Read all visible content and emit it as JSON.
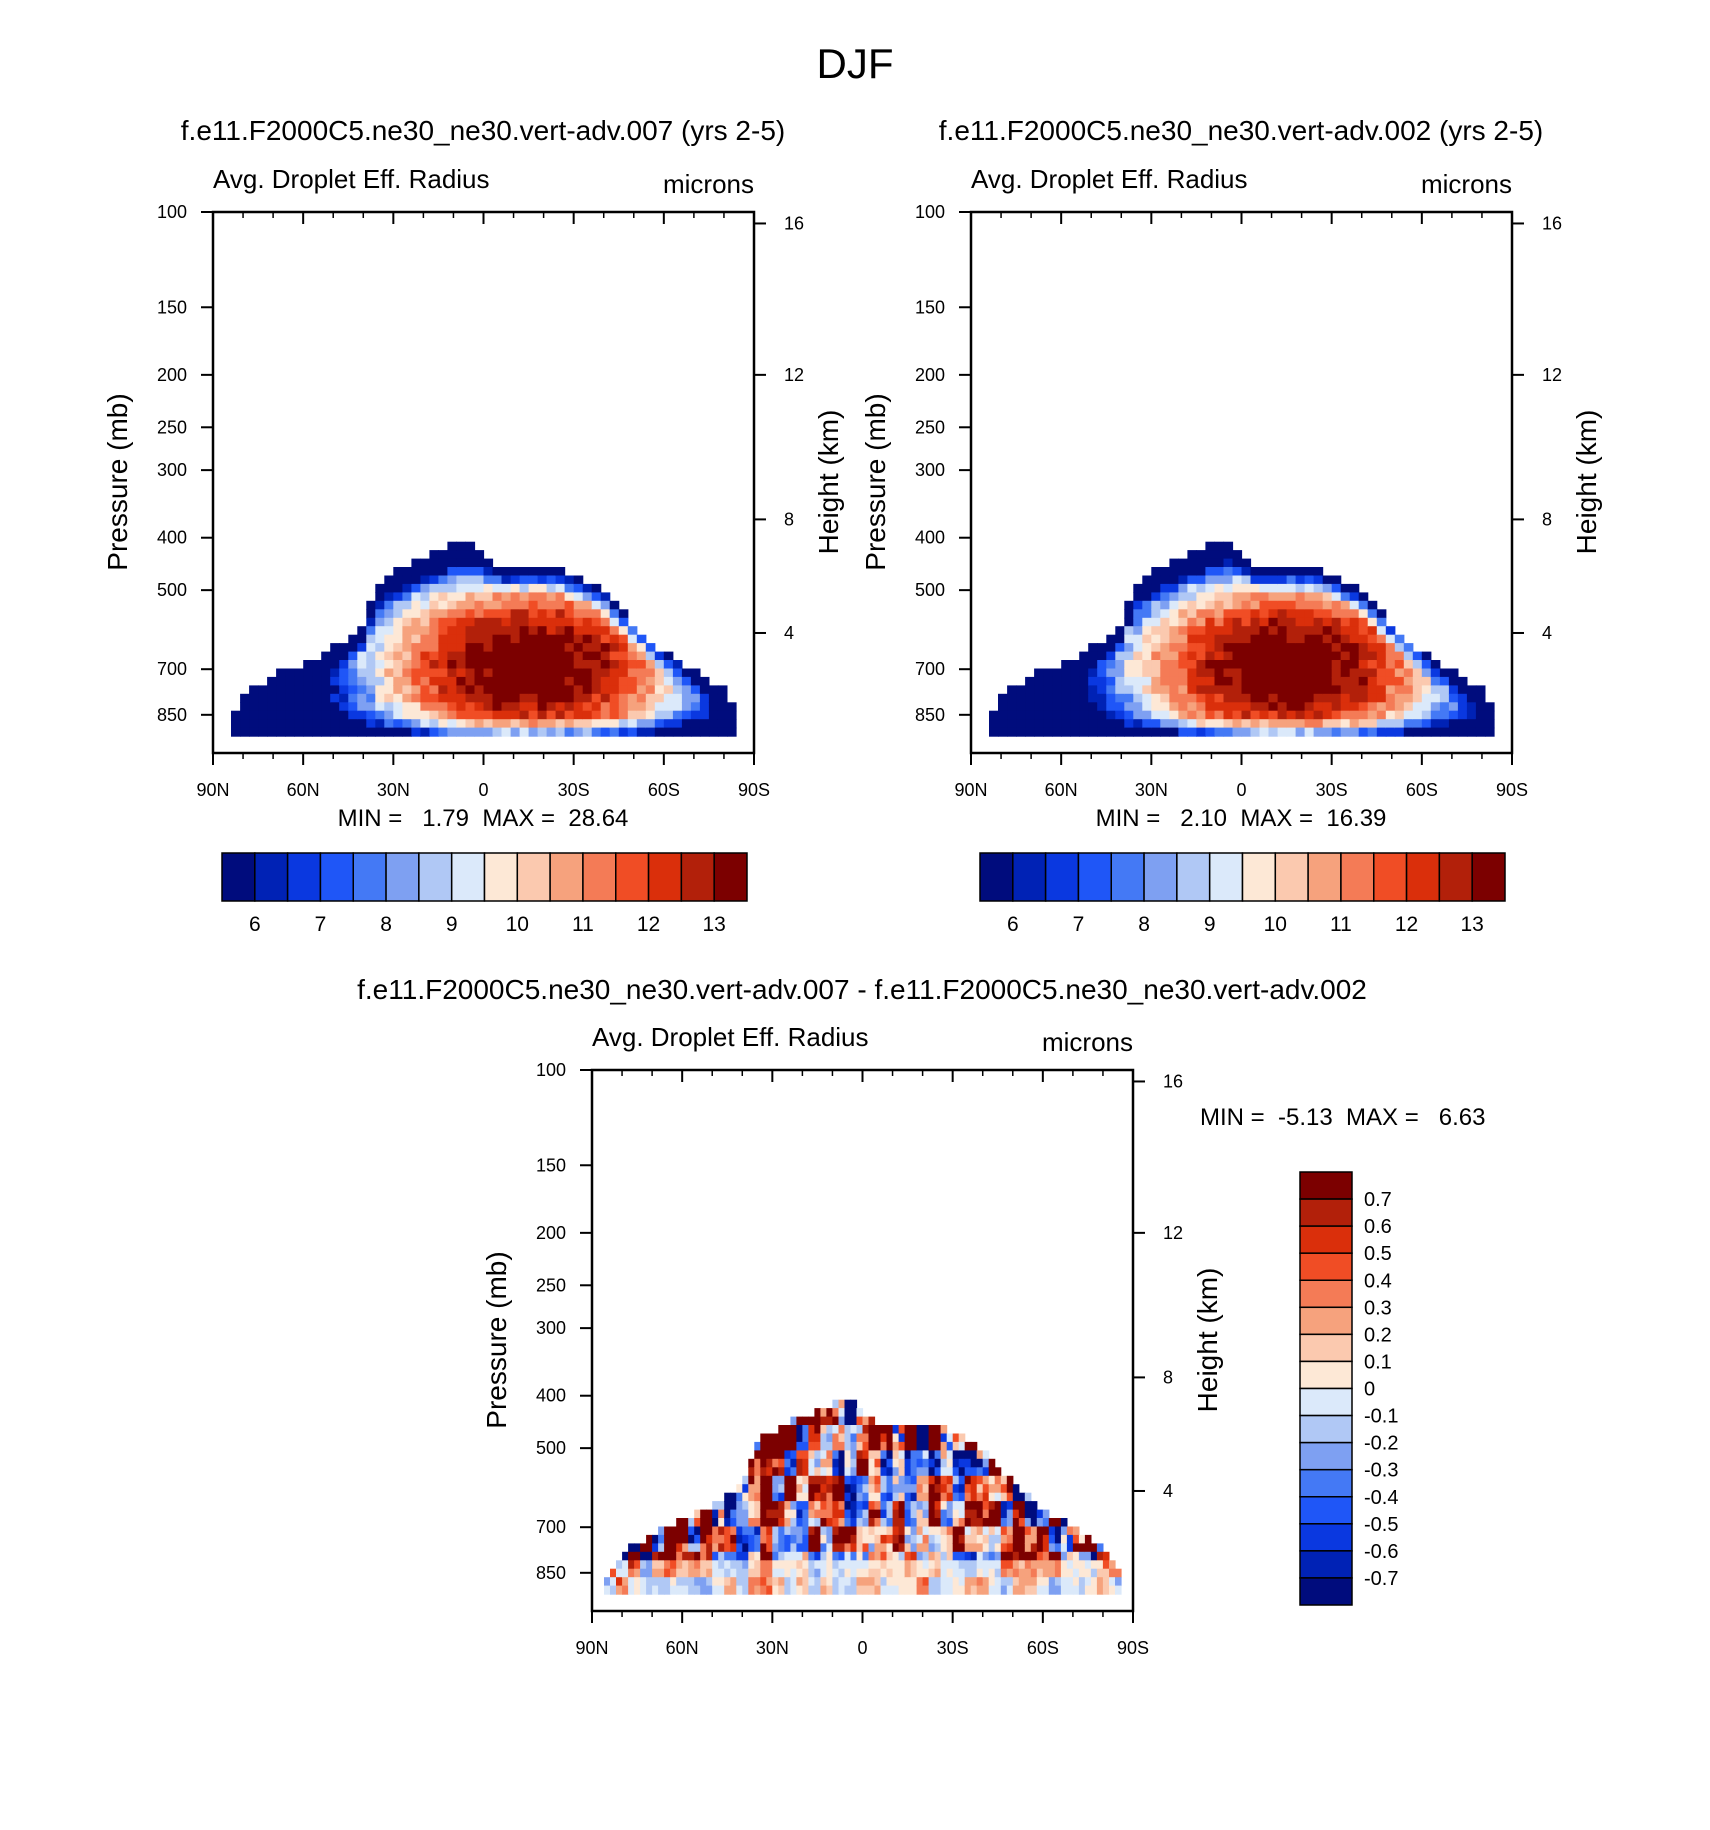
{
  "figure": {
    "title": "DJF"
  },
  "colors": {
    "abs_palette": [
      "#000c7d",
      "#0022b5",
      "#0a38e0",
      "#1f56f7",
      "#4479f5",
      "#7ea0f2",
      "#b0c8f5",
      "#dbe9fa",
      "#fde8d6",
      "#fbc9af",
      "#f6a27d",
      "#f47b56",
      "#f04d25",
      "#da2f0b",
      "#b2200a",
      "#7c0000"
    ],
    "diff_palette": [
      "#000c7d",
      "#0022b5",
      "#0a38e0",
      "#1f56f7",
      "#4479f5",
      "#7ea0f2",
      "#b0c8f5",
      "#dbe9fa",
      "#fde8d6",
      "#fbc9af",
      "#f6a27d",
      "#f47b56",
      "#f04d25",
      "#da2f0b",
      "#b2200a",
      "#7c0000"
    ]
  },
  "chart_data": [
    {
      "type": "heatmap",
      "case_title": "f.e11.F2000C5.ne30_ne30.vert-adv.007 (yrs 2-5)",
      "variable": "Avg. Droplet Eff. Radius",
      "units": "microns",
      "ylabel": "Pressure (mb)",
      "ylabel_right": "Height (km)",
      "x_ticks": [
        "90N",
        "60N",
        "30N",
        "0",
        "30S",
        "60S",
        "90S"
      ],
      "y_ticks": [
        "100",
        "150",
        "200",
        "250",
        "300",
        "400",
        "500",
        "700",
        "850"
      ],
      "y_ticks_right": [
        "16",
        "12",
        "8",
        "4"
      ],
      "xlim": [
        90,
        -90
      ],
      "ylim": [
        100,
        1000
      ],
      "y_scale": "log",
      "min_text": "MIN =   1.79  MAX =  28.64",
      "min": 1.79,
      "max": 28.64,
      "colorbar_labels": [
        "6",
        "7",
        "8",
        "9",
        "10",
        "11",
        "12",
        "13"
      ],
      "field": {
        "top_pressure": [
          {
            "lat": 85,
            "p": 880
          },
          {
            "lat": 80,
            "p": 780
          },
          {
            "lat": 70,
            "p": 720
          },
          {
            "lat": 60,
            "p": 680
          },
          {
            "lat": 50,
            "p": 640
          },
          {
            "lat": 40,
            "p": 580
          },
          {
            "lat": 35,
            "p": 480
          },
          {
            "lat": 25,
            "p": 450
          },
          {
            "lat": 5,
            "p": 400
          },
          {
            "lat": -5,
            "p": 450
          },
          {
            "lat": -25,
            "p": 450
          },
          {
            "lat": -40,
            "p": 500
          },
          {
            "lat": -50,
            "p": 580
          },
          {
            "lat": -60,
            "p": 650
          },
          {
            "lat": -70,
            "p": 700
          },
          {
            "lat": -80,
            "p": 760
          },
          {
            "lat": -85,
            "p": 830
          }
        ],
        "peak": {
          "lat": -15,
          "p": 690,
          "value": 13.5
        },
        "equator_column": {
          "lat": -12,
          "value": 12.5
        }
      }
    },
    {
      "type": "heatmap",
      "case_title": "f.e11.F2000C5.ne30_ne30.vert-adv.002 (yrs 2-5)",
      "variable": "Avg. Droplet Eff. Radius",
      "units": "microns",
      "ylabel": "Pressure (mb)",
      "ylabel_right": "Height (km)",
      "x_ticks": [
        "90N",
        "60N",
        "30N",
        "0",
        "30S",
        "60S",
        "90S"
      ],
      "y_ticks": [
        "100",
        "150",
        "200",
        "250",
        "300",
        "400",
        "500",
        "700",
        "850"
      ],
      "y_ticks_right": [
        "16",
        "12",
        "8",
        "4"
      ],
      "xlim": [
        90,
        -90
      ],
      "ylim": [
        100,
        1000
      ],
      "y_scale": "log",
      "min_text": "MIN =   2.10  MAX =  16.39",
      "min": 2.1,
      "max": 16.39,
      "colorbar_labels": [
        "6",
        "7",
        "8",
        "9",
        "10",
        "11",
        "12",
        "13"
      ],
      "field": {
        "top_pressure": [
          {
            "lat": 85,
            "p": 880
          },
          {
            "lat": 80,
            "p": 780
          },
          {
            "lat": 70,
            "p": 720
          },
          {
            "lat": 60,
            "p": 680
          },
          {
            "lat": 50,
            "p": 640
          },
          {
            "lat": 40,
            "p": 580
          },
          {
            "lat": 35,
            "p": 480
          },
          {
            "lat": 25,
            "p": 450
          },
          {
            "lat": 5,
            "p": 400
          },
          {
            "lat": -5,
            "p": 450
          },
          {
            "lat": -25,
            "p": 450
          },
          {
            "lat": -40,
            "p": 500
          },
          {
            "lat": -50,
            "p": 580
          },
          {
            "lat": -60,
            "p": 650
          },
          {
            "lat": -70,
            "p": 700
          },
          {
            "lat": -80,
            "p": 760
          },
          {
            "lat": -85,
            "p": 830
          }
        ],
        "peak": {
          "lat": -15,
          "p": 690,
          "value": 13.5
        },
        "equator_column": {
          "lat": -12,
          "value": 12.5
        }
      }
    },
    {
      "type": "heatmap",
      "case_title": "f.e11.F2000C5.ne30_ne30.vert-adv.007 - f.e11.F2000C5.ne30_ne30.vert-adv.002",
      "variable": "Avg. Droplet Eff. Radius",
      "units": "microns",
      "ylabel": "Pressure (mb)",
      "ylabel_right": "Height (km)",
      "x_ticks": [
        "90N",
        "60N",
        "30N",
        "0",
        "30S",
        "60S",
        "90S"
      ],
      "y_ticks": [
        "100",
        "150",
        "200",
        "250",
        "300",
        "400",
        "500",
        "700",
        "850"
      ],
      "y_ticks_right": [
        "16",
        "12",
        "8",
        "4"
      ],
      "xlim": [
        90,
        -90
      ],
      "ylim": [
        100,
        1000
      ],
      "y_scale": "log",
      "min_text": "MIN =  -5.13  MAX =   6.63",
      "min": -5.13,
      "max": 6.63,
      "colorbar_labels": [
        "0.7",
        "0.6",
        "0.5",
        "0.4",
        "0.3",
        "0.2",
        "0.1",
        "0",
        "-0.1",
        "-0.2",
        "-0.3",
        "-0.4",
        "-0.5",
        "-0.6",
        "-0.7"
      ]
    }
  ]
}
